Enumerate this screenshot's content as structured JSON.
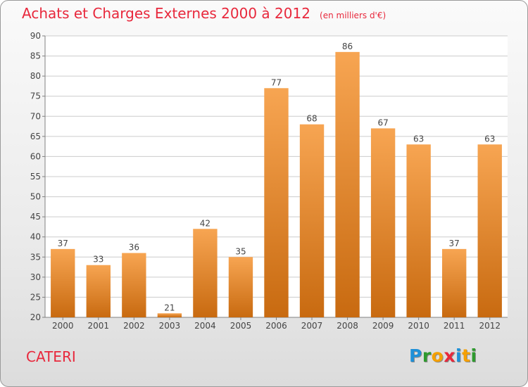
{
  "title": "Achats et Charges Externes 2000 à 2012",
  "unit": "(en milliers d'€)",
  "commune": "CATERI",
  "logo": {
    "letters": [
      "P",
      "r",
      "o",
      "x",
      "i",
      "t",
      "i"
    ],
    "colors": [
      "#1e90d8",
      "#2e9a2e",
      "#f5a000",
      "#e8283c",
      "#1e90d8",
      "#f5a000",
      "#2e9a2e"
    ]
  },
  "colors": {
    "bar_top": "#f7a552",
    "bar_bottom": "#c86a10",
    "title": "#e8283c",
    "grid": "#cccccc",
    "axis": "#808080"
  },
  "chart_data": {
    "type": "bar",
    "categories": [
      "2000",
      "2001",
      "2002",
      "2003",
      "2004",
      "2005",
      "2006",
      "2007",
      "2008",
      "2009",
      "2010",
      "2011",
      "2012"
    ],
    "values": [
      37,
      33,
      36,
      21,
      42,
      35,
      77,
      68,
      86,
      67,
      63,
      37,
      63
    ],
    "data_labels": [
      "37",
      "33",
      "36",
      "21",
      "42",
      "35",
      "77",
      "68",
      "86",
      "67",
      "63",
      "37",
      "63"
    ],
    "ylim": [
      20,
      90
    ],
    "yticks": [
      20,
      25,
      30,
      35,
      40,
      45,
      50,
      55,
      60,
      65,
      70,
      75,
      80,
      85,
      90
    ],
    "grid": true,
    "legend": "none"
  }
}
